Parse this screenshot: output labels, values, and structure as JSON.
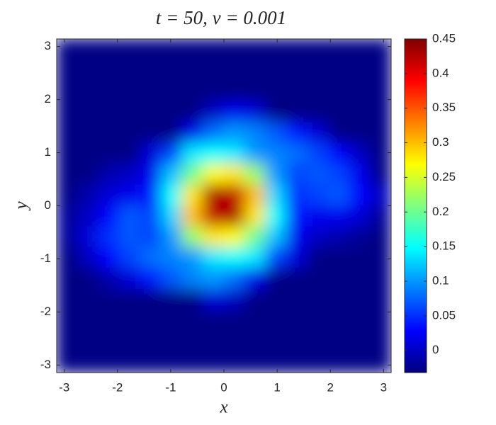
{
  "chart_data": {
    "type": "heatmap",
    "title": "t = 50,  ν = 0.001",
    "x_label": "x",
    "y_label": "y",
    "colormap": "jet",
    "x": [
      -2.95,
      -2.55,
      -2.16,
      -1.77,
      -1.37,
      -0.98,
      -0.59,
      -0.2,
      0.2,
      0.59,
      0.98,
      1.37,
      1.77,
      2.16,
      2.55,
      2.95
    ],
    "y": [
      2.95,
      2.55,
      2.16,
      1.77,
      1.37,
      0.98,
      0.59,
      0.2,
      -0.2,
      -0.59,
      -0.98,
      -1.37,
      -1.77,
      -2.16,
      -2.55,
      -2.95
    ],
    "values": [
      [
        -0.03,
        -0.03,
        -0.03,
        -0.03,
        -0.03,
        -0.03,
        -0.03,
        -0.03,
        -0.03,
        -0.03,
        -0.03,
        -0.03,
        -0.03,
        -0.03,
        -0.03,
        -0.03
      ],
      [
        -0.03,
        -0.03,
        -0.03,
        -0.03,
        -0.03,
        -0.03,
        -0.03,
        -0.03,
        -0.03,
        -0.03,
        -0.03,
        -0.03,
        -0.03,
        -0.03,
        -0.03,
        -0.03
      ],
      [
        -0.03,
        -0.03,
        -0.03,
        -0.03,
        -0.03,
        -0.03,
        -0.03,
        -0.03,
        -0.03,
        -0.03,
        -0.03,
        -0.03,
        -0.03,
        -0.03,
        -0.03,
        -0.03
      ],
      [
        -0.03,
        -0.03,
        -0.03,
        -0.03,
        -0.03,
        -0.03,
        -0.03,
        0.0,
        0.02,
        0.01,
        -0.03,
        -0.03,
        -0.03,
        -0.03,
        -0.03,
        -0.03
      ],
      [
        -0.03,
        -0.03,
        -0.03,
        -0.03,
        -0.03,
        -0.03,
        0.02,
        0.08,
        0.1,
        0.09,
        0.07,
        0.04,
        0.01,
        -0.03,
        -0.03,
        -0.03
      ],
      [
        -0.03,
        -0.03,
        -0.03,
        -0.03,
        0.01,
        0.06,
        0.14,
        0.15,
        0.14,
        0.1,
        0.09,
        0.08,
        0.06,
        0.03,
        0.0,
        -0.03
      ],
      [
        -0.03,
        -0.03,
        -0.01,
        0.0,
        0.02,
        0.12,
        0.2,
        0.27,
        0.28,
        0.22,
        0.1,
        0.06,
        0.07,
        0.06,
        0.02,
        -0.03
      ],
      [
        -0.03,
        -0.01,
        0.01,
        0.02,
        0.04,
        0.15,
        0.28,
        0.43,
        0.42,
        0.3,
        0.13,
        0.05,
        0.06,
        0.07,
        0.03,
        0.0
      ],
      [
        -0.02,
        0.0,
        0.03,
        0.07,
        0.06,
        0.13,
        0.3,
        0.42,
        0.43,
        0.28,
        0.15,
        0.04,
        0.02,
        0.02,
        0.01,
        -0.02
      ],
      [
        -0.02,
        0.01,
        0.05,
        0.07,
        0.06,
        0.1,
        0.22,
        0.28,
        0.27,
        0.2,
        0.12,
        0.02,
        0.0,
        -0.01,
        -0.02,
        -0.03
      ],
      [
        -0.03,
        0.0,
        0.03,
        0.06,
        0.08,
        0.09,
        0.1,
        0.14,
        0.15,
        0.14,
        0.06,
        0.01,
        -0.03,
        -0.03,
        -0.03,
        -0.03
      ],
      [
        -0.03,
        -0.03,
        -0.01,
        0.01,
        0.04,
        0.07,
        0.09,
        0.1,
        0.08,
        0.02,
        -0.03,
        -0.03,
        -0.03,
        -0.03,
        -0.03,
        -0.03
      ],
      [
        -0.03,
        -0.03,
        -0.03,
        -0.03,
        -0.03,
        -0.03,
        -0.03,
        0.01,
        0.0,
        -0.03,
        -0.03,
        -0.03,
        -0.03,
        -0.03,
        -0.03,
        -0.03
      ],
      [
        -0.03,
        -0.03,
        -0.03,
        -0.03,
        -0.03,
        -0.03,
        -0.03,
        -0.03,
        -0.03,
        -0.03,
        -0.03,
        -0.03,
        -0.03,
        -0.03,
        -0.03,
        -0.03
      ],
      [
        -0.03,
        -0.03,
        -0.03,
        -0.03,
        -0.03,
        -0.03,
        -0.03,
        -0.03,
        -0.03,
        -0.03,
        -0.03,
        -0.03,
        -0.03,
        -0.03,
        -0.03,
        -0.03
      ],
      [
        -0.03,
        -0.03,
        -0.03,
        -0.03,
        -0.03,
        -0.03,
        -0.03,
        -0.03,
        -0.03,
        -0.03,
        -0.03,
        -0.03,
        -0.03,
        -0.03,
        -0.03,
        -0.03
      ]
    ],
    "xlim": [
      -3.1416,
      3.1416
    ],
    "ylim": [
      -3.1416,
      3.1416
    ],
    "xticks": [
      -3,
      -2,
      -1,
      0,
      1,
      2,
      3
    ],
    "yticks": [
      -3,
      -2,
      -1,
      0,
      1,
      2,
      3
    ],
    "clim": [
      -0.032,
      0.45
    ],
    "cticks": [
      0,
      0.05,
      0.1,
      0.15,
      0.2,
      0.25,
      0.3,
      0.35,
      0.4,
      0.45
    ]
  }
}
